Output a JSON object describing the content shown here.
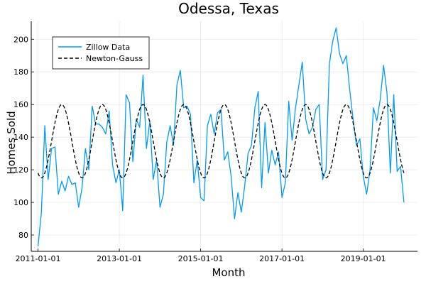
{
  "chart_data": {
    "type": "line",
    "title": "Odessa, Texas",
    "xlabel": "Month",
    "ylabel": "Homes Sold",
    "x_start": "2011-01-01",
    "x_frequency": "monthly",
    "xlim": [
      "2010-11-01",
      "2020-05-01"
    ],
    "ylim": [
      70,
      211
    ],
    "x_ticks": [
      "2011-01-01",
      "2013-01-01",
      "2015-01-01",
      "2017-01-01",
      "2019-01-01"
    ],
    "y_ticks": [
      80,
      100,
      120,
      140,
      160,
      180,
      200
    ],
    "grid": true,
    "legend_position": "top-left",
    "series": [
      {
        "name": "Zillow Data",
        "style": "solid",
        "color": "#009AFA",
        "values": [
          73,
          94,
          147,
          114,
          133,
          134,
          105,
          113,
          107,
          116,
          111,
          112,
          97,
          109,
          133,
          120,
          159,
          148,
          148,
          146,
          142,
          156,
          123,
          112,
          120,
          95,
          166,
          161,
          125,
          151,
          146,
          178,
          133,
          150,
          114,
          126,
          97,
          105,
          137,
          147,
          135,
          172,
          181,
          158,
          159,
          154,
          112,
          126,
          103,
          101,
          147,
          154,
          142,
          155,
          157,
          126,
          131,
          116,
          90,
          106,
          94,
          110,
          130,
          135,
          158,
          168,
          109,
          149,
          118,
          132,
          123,
          131,
          103,
          112,
          162,
          138,
          158,
          172,
          186,
          151,
          142,
          146,
          157,
          160,
          114,
          120,
          185,
          199,
          207,
          191,
          185,
          190,
          169,
          151,
          135,
          139,
          116,
          105,
          120,
          158,
          150,
          163,
          184,
          167,
          118,
          166,
          119,
          122,
          100
        ]
      },
      {
        "name": "Newton-Gauss",
        "style": "dashed",
        "color": "#000000",
        "model": {
          "mean": 137.5,
          "amplitude": 22.5,
          "period_months": 12,
          "peak_month": 7
        }
      }
    ]
  }
}
